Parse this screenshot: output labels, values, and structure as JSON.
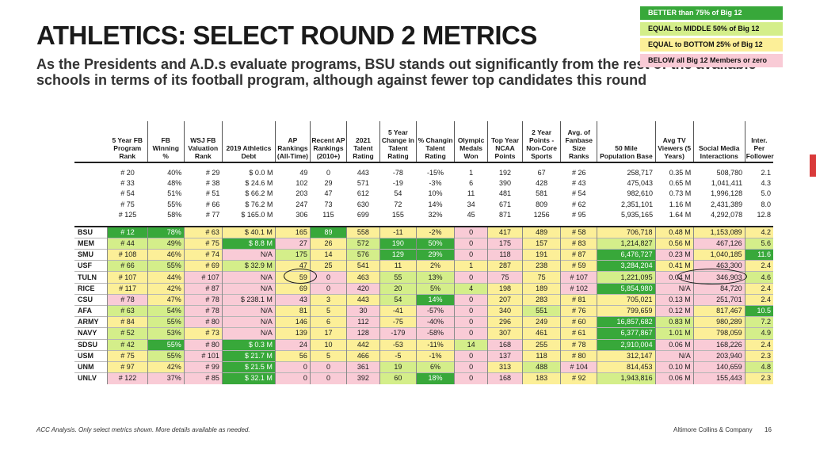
{
  "header": {
    "title": "ATHLETICS: SELECT ROUND 2 METRICS",
    "subtitle": "As the Presidents and A.D.s evaluate programs, BSU stands out significantly from the rest of the available schools in terms of its football program, although against fewer top candidates this round"
  },
  "legend": [
    {
      "label": "BETTER than 75% of Big 12",
      "color": "#38a83a"
    },
    {
      "label": "EQUAL to MIDDLE 50% of Big 12",
      "color": "#d4ee8a"
    },
    {
      "label": "EQUAL to BOTTOM 25% of Big 12",
      "color": "#fcef98"
    },
    {
      "label": "BELOW all Big 12 Members or zero",
      "color": "#f9cbd6"
    }
  ],
  "columns": [
    "",
    "5 Year FB Program Rank",
    "FB Winning %",
    "WSJ FB Valuation Rank",
    "2019 Athletics Debt",
    "AP Rankings (All-Time)",
    "Recent AP Rankings (2010+)",
    "2021 Talent Rating",
    "5 Year Change in Talent Rating",
    "% Changin Talent Rating",
    "Olympic Medals Won",
    "Top Year NCAA Points",
    "2 Year Points - Non-Core Sports",
    "Avg. of Fanbase Size Ranks",
    "50 Mile Population Base",
    "Avg TV Viewers (5 Years)",
    "Social Media Interactions",
    "Inter. Per Follower"
  ],
  "benchmarks": [
    [
      "# 20",
      "40%",
      "# 29",
      "$ 0.0 M",
      "49",
      "0",
      "443",
      "-78",
      "-15%",
      "1",
      "192",
      "67",
      "# 26",
      "258,717",
      "0.35 M",
      "508,780",
      "2.1"
    ],
    [
      "# 33",
      "48%",
      "# 38",
      "$ 24.6 M",
      "102",
      "29",
      "571",
      "-19",
      "-3%",
      "6",
      "390",
      "428",
      "# 43",
      "475,043",
      "0.65 M",
      "1,041,411",
      "4.3"
    ],
    [
      "# 54",
      "51%",
      "# 51",
      "$ 66.2 M",
      "203",
      "47",
      "612",
      "54",
      "10%",
      "11",
      "481",
      "581",
      "# 54",
      "982,610",
      "0.73 M",
      "1,996,128",
      "5.0"
    ],
    [
      "# 75",
      "55%",
      "# 66",
      "$ 76.2 M",
      "247",
      "73",
      "630",
      "72",
      "14%",
      "34",
      "671",
      "809",
      "# 62",
      "2,351,101",
      "1.16 M",
      "2,431,389",
      "8.0"
    ],
    [
      "# 125",
      "58%",
      "# 77",
      "$ 165.0 M",
      "306",
      "115",
      "699",
      "155",
      "32%",
      "45",
      "871",
      "1256",
      "# 95",
      "5,935,165",
      "1.64 M",
      "4,292,078",
      "12.8"
    ]
  ],
  "schools": [
    {
      "name": "BSU",
      "cells": [
        [
          "# 12",
          "g"
        ],
        [
          "78%",
          "g"
        ],
        [
          "# 63",
          "y"
        ],
        [
          "$ 40.1 M",
          "y"
        ],
        [
          "165",
          "y"
        ],
        [
          "89",
          "g"
        ],
        [
          "558",
          "y"
        ],
        [
          "-11",
          "y"
        ],
        [
          "-2%",
          "y"
        ],
        [
          "0",
          "p"
        ],
        [
          "417",
          "y"
        ],
        [
          "489",
          "y"
        ],
        [
          "# 58",
          "y"
        ],
        [
          "706,718",
          "y"
        ],
        [
          "0.48 M",
          "y"
        ],
        [
          "1,153,089",
          "y"
        ],
        [
          "4.2",
          "y"
        ]
      ]
    },
    {
      "name": "MEM",
      "cells": [
        [
          "# 44",
          "lm"
        ],
        [
          "49%",
          "lm"
        ],
        [
          "# 75",
          "y"
        ],
        [
          "$ 8.8 M",
          "g"
        ],
        [
          "27",
          "p"
        ],
        [
          "26",
          "y"
        ],
        [
          "572",
          "lm"
        ],
        [
          "190",
          "g"
        ],
        [
          "50%",
          "g"
        ],
        [
          "0",
          "p"
        ],
        [
          "175",
          "p"
        ],
        [
          "157",
          "y"
        ],
        [
          "# 83",
          "y"
        ],
        [
          "1,214,827",
          "lm"
        ],
        [
          "0.56 M",
          "y"
        ],
        [
          "467,126",
          "p"
        ],
        [
          "5.6",
          "lm"
        ]
      ]
    },
    {
      "name": "SMU",
      "cells": [
        [
          "# 108",
          "y"
        ],
        [
          "46%",
          "y"
        ],
        [
          "# 74",
          "y"
        ],
        [
          "N/A",
          "p"
        ],
        [
          "175",
          "lm"
        ],
        [
          "14",
          "y"
        ],
        [
          "576",
          "lm"
        ],
        [
          "129",
          "g"
        ],
        [
          "29%",
          "g"
        ],
        [
          "0",
          "p"
        ],
        [
          "118",
          "p"
        ],
        [
          "191",
          "y"
        ],
        [
          "# 87",
          "y"
        ],
        [
          "6,476,727",
          "g"
        ],
        [
          "0.23 M",
          "p"
        ],
        [
          "1,040,185",
          "y"
        ],
        [
          "11.6",
          "g"
        ]
      ]
    },
    {
      "name": "USF",
      "cells": [
        [
          "# 66",
          "lm"
        ],
        [
          "55%",
          "lm"
        ],
        [
          "# 69",
          "y"
        ],
        [
          "$ 32.9 M",
          "lm"
        ],
        [
          "47",
          "y"
        ],
        [
          "25",
          "y"
        ],
        [
          "541",
          "y"
        ],
        [
          "11",
          "y"
        ],
        [
          "2%",
          "y"
        ],
        [
          "1",
          "y"
        ],
        [
          "287",
          "y"
        ],
        [
          "238",
          "y"
        ],
        [
          "# 59",
          "y"
        ],
        [
          "3,284,204",
          "g"
        ],
        [
          "0.41 M",
          "y"
        ],
        [
          "463,300",
          "p"
        ],
        [
          "2.4",
          "y"
        ]
      ]
    },
    {
      "name": "TULN",
      "cells": [
        [
          "# 107",
          "y"
        ],
        [
          "44%",
          "y"
        ],
        [
          "# 107",
          "p"
        ],
        [
          "N/A",
          "p"
        ],
        [
          "59",
          "y"
        ],
        [
          "0",
          "p"
        ],
        [
          "463",
          "y"
        ],
        [
          "55",
          "lm"
        ],
        [
          "13%",
          "lm"
        ],
        [
          "0",
          "p"
        ],
        [
          "75",
          "p"
        ],
        [
          "75",
          "y"
        ],
        [
          "# 107",
          "p"
        ],
        [
          "1,221,095",
          "lm"
        ],
        [
          "0.04 M",
          "p"
        ],
        [
          "346,903",
          "p"
        ],
        [
          "4.6",
          "lm"
        ]
      ]
    },
    {
      "name": "RICE",
      "cells": [
        [
          "# 117",
          "y"
        ],
        [
          "42%",
          "y"
        ],
        [
          "# 87",
          "p"
        ],
        [
          "N/A",
          "p"
        ],
        [
          "69",
          "y"
        ],
        [
          "0",
          "p"
        ],
        [
          "420",
          "p"
        ],
        [
          "20",
          "lm"
        ],
        [
          "5%",
          "lm"
        ],
        [
          "4",
          "lm"
        ],
        [
          "198",
          "y"
        ],
        [
          "189",
          "y"
        ],
        [
          "# 102",
          "p"
        ],
        [
          "5,854,980",
          "g"
        ],
        [
          "N/A",
          "p"
        ],
        [
          "84,720",
          "p"
        ],
        [
          "2.4",
          "y"
        ]
      ]
    },
    {
      "name": "CSU",
      "cells": [
        [
          "# 78",
          "p"
        ],
        [
          "47%",
          "y"
        ],
        [
          "# 78",
          "p"
        ],
        [
          "$ 238.1 M",
          "p"
        ],
        [
          "43",
          "p"
        ],
        [
          "3",
          "y"
        ],
        [
          "443",
          "y"
        ],
        [
          "54",
          "lm"
        ],
        [
          "14%",
          "g"
        ],
        [
          "0",
          "p"
        ],
        [
          "207",
          "y"
        ],
        [
          "283",
          "y"
        ],
        [
          "# 81",
          "y"
        ],
        [
          "705,021",
          "y"
        ],
        [
          "0.13 M",
          "p"
        ],
        [
          "251,701",
          "p"
        ],
        [
          "2.4",
          "y"
        ]
      ]
    },
    {
      "name": "AFA",
      "cells": [
        [
          "# 63",
          "lm"
        ],
        [
          "54%",
          "lm"
        ],
        [
          "# 78",
          "p"
        ],
        [
          "N/A",
          "p"
        ],
        [
          "81",
          "y"
        ],
        [
          "5",
          "y"
        ],
        [
          "30",
          "p"
        ],
        [
          "-41",
          "y"
        ],
        [
          "-57%",
          "p"
        ],
        [
          "0",
          "p"
        ],
        [
          "340",
          "y"
        ],
        [
          "551",
          "lm"
        ],
        [
          "# 76",
          "y"
        ],
        [
          "799,659",
          "y"
        ],
        [
          "0.12 M",
          "p"
        ],
        [
          "817,467",
          "y"
        ],
        [
          "10.5",
          "g"
        ]
      ]
    },
    {
      "name": "ARMY",
      "cells": [
        [
          "# 84",
          "y"
        ],
        [
          "55%",
          "lm"
        ],
        [
          "# 80",
          "p"
        ],
        [
          "N/A",
          "p"
        ],
        [
          "146",
          "y"
        ],
        [
          "6",
          "y"
        ],
        [
          "112",
          "p"
        ],
        [
          "-75",
          "y"
        ],
        [
          "-40%",
          "p"
        ],
        [
          "0",
          "p"
        ],
        [
          "296",
          "y"
        ],
        [
          "249",
          "y"
        ],
        [
          "# 60",
          "y"
        ],
        [
          "16,857,682",
          "g"
        ],
        [
          "0.83 M",
          "lm"
        ],
        [
          "980,289",
          "y"
        ],
        [
          "7.2",
          "lm"
        ]
      ]
    },
    {
      "name": "NAVY",
      "cells": [
        [
          "# 52",
          "lm"
        ],
        [
          "53%",
          "lm"
        ],
        [
          "# 73",
          "y"
        ],
        [
          "N/A",
          "p"
        ],
        [
          "139",
          "y"
        ],
        [
          "17",
          "y"
        ],
        [
          "128",
          "p"
        ],
        [
          "-179",
          "p"
        ],
        [
          "-58%",
          "p"
        ],
        [
          "0",
          "p"
        ],
        [
          "307",
          "y"
        ],
        [
          "461",
          "y"
        ],
        [
          "# 61",
          "y"
        ],
        [
          "6,377,867",
          "g"
        ],
        [
          "1.01 M",
          "lm"
        ],
        [
          "798,059",
          "y"
        ],
        [
          "4.9",
          "lm"
        ]
      ]
    },
    {
      "name": "SDSU",
      "cells": [
        [
          "# 42",
          "lm"
        ],
        [
          "55%",
          "g"
        ],
        [
          "# 80",
          "p"
        ],
        [
          "$ 0.3 M",
          "g"
        ],
        [
          "24",
          "p"
        ],
        [
          "10",
          "y"
        ],
        [
          "442",
          "y"
        ],
        [
          "-53",
          "y"
        ],
        [
          "-11%",
          "y"
        ],
        [
          "14",
          "lm"
        ],
        [
          "168",
          "p"
        ],
        [
          "255",
          "y"
        ],
        [
          "# 78",
          "y"
        ],
        [
          "2,910,004",
          "g"
        ],
        [
          "0.06 M",
          "p"
        ],
        [
          "168,226",
          "p"
        ],
        [
          "2.4",
          "y"
        ]
      ]
    },
    {
      "name": "USM",
      "cells": [
        [
          "# 75",
          "y"
        ],
        [
          "55%",
          "lm"
        ],
        [
          "# 101",
          "p"
        ],
        [
          "$ 21.7 M",
          "g"
        ],
        [
          "56",
          "y"
        ],
        [
          "5",
          "y"
        ],
        [
          "466",
          "y"
        ],
        [
          "-5",
          "y"
        ],
        [
          "-1%",
          "y"
        ],
        [
          "0",
          "p"
        ],
        [
          "137",
          "p"
        ],
        [
          "118",
          "y"
        ],
        [
          "# 80",
          "y"
        ],
        [
          "312,147",
          "y"
        ],
        [
          "N/A",
          "p"
        ],
        [
          "203,940",
          "p"
        ],
        [
          "2.3",
          "y"
        ]
      ]
    },
    {
      "name": "UNM",
      "cells": [
        [
          "# 97",
          "y"
        ],
        [
          "42%",
          "y"
        ],
        [
          "# 99",
          "p"
        ],
        [
          "$ 21.5 M",
          "g"
        ],
        [
          "0",
          "p"
        ],
        [
          "0",
          "p"
        ],
        [
          "361",
          "p"
        ],
        [
          "19",
          "lm"
        ],
        [
          "6%",
          "lm"
        ],
        [
          "0",
          "p"
        ],
        [
          "313",
          "y"
        ],
        [
          "488",
          "lm"
        ],
        [
          "# 104",
          "p"
        ],
        [
          "814,453",
          "y"
        ],
        [
          "0.10 M",
          "p"
        ],
        [
          "140,659",
          "p"
        ],
        [
          "4.8",
          "lm"
        ]
      ]
    },
    {
      "name": "UNLV",
      "cells": [
        [
          "# 122",
          "p"
        ],
        [
          "37%",
          "p"
        ],
        [
          "# 85",
          "p"
        ],
        [
          "$ 32.1 M",
          "g"
        ],
        [
          "0",
          "p"
        ],
        [
          "0",
          "p"
        ],
        [
          "392",
          "p"
        ],
        [
          "60",
          "lm"
        ],
        [
          "18%",
          "g"
        ],
        [
          "0",
          "p"
        ],
        [
          "168",
          "p"
        ],
        [
          "183",
          "y"
        ],
        [
          "# 92",
          "y"
        ],
        [
          "1,943,816",
          "lm"
        ],
        [
          "0.06 M",
          "p"
        ],
        [
          "155,443",
          "p"
        ],
        [
          "2.3",
          "y"
        ]
      ]
    }
  ],
  "footer": {
    "note": "ACC Analysis. Only select metrics shown. More details available as needed.",
    "source": "Altimore Collins & Company",
    "page": "16"
  }
}
